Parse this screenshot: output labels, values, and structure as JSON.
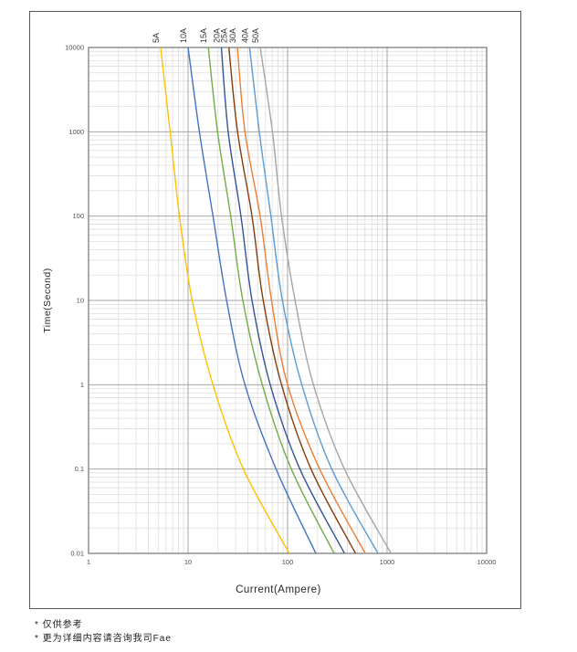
{
  "figure": {
    "footnotes": [
      "* 仅供参考",
      "* 更为详细内容请咨询我司Fae"
    ]
  },
  "chart_data": {
    "type": "line",
    "title": "",
    "xlabel": "Current(Ampere)",
    "ylabel": "Time(Second)",
    "x_scale": "log",
    "y_scale": "log",
    "xlim": [
      1,
      10000
    ],
    "ylim": [
      0.01,
      10000
    ],
    "x_ticks": [
      "1",
      "10",
      "100",
      "1000",
      "10000"
    ],
    "y_ticks": [
      "10000",
      "1000",
      "100",
      "10",
      "1",
      "0.1",
      "0.01"
    ],
    "grid": "log major and minor, both axes",
    "legend_position": "labels rotated above curve tops",
    "colors": {
      "minor_grid": "#d9d9d9",
      "major_grid": "#a6a6a6",
      "plot_border": "#737373",
      "tick_text": "#4d4d4d",
      "label_text": "#333333"
    },
    "series": [
      {
        "name": "5A",
        "color": "#FFC000",
        "points": [
          [
            5.3,
            10000
          ],
          [
            6.6,
            1000
          ],
          [
            8.2,
            100
          ],
          [
            11,
            10
          ],
          [
            17.8,
            1
          ],
          [
            36,
            0.1
          ],
          [
            104,
            0.01
          ]
        ]
      },
      {
        "name": "10A",
        "color": "#4472C4",
        "points": [
          [
            10,
            10000
          ],
          [
            13,
            1000
          ],
          [
            17.8,
            100
          ],
          [
            24.4,
            10
          ],
          [
            37.3,
            1
          ],
          [
            76.6,
            0.1
          ],
          [
            192,
            0.01
          ]
        ]
      },
      {
        "name": "15A",
        "color": "#70AD47",
        "points": [
          [
            16,
            10000
          ],
          [
            19.8,
            1000
          ],
          [
            26.8,
            100
          ],
          [
            35.5,
            10
          ],
          [
            55.7,
            1
          ],
          [
            109,
            0.1
          ],
          [
            294,
            0.01
          ]
        ]
      },
      {
        "name": "20A",
        "color": "#2F5597",
        "points": [
          [
            21.6,
            10000
          ],
          [
            25.3,
            1000
          ],
          [
            34,
            100
          ],
          [
            43.9,
            10
          ],
          [
            67,
            1
          ],
          [
            133,
            0.1
          ],
          [
            373,
            0.01
          ]
        ]
      },
      {
        "name": "25A",
        "color": "#843C0C",
        "points": [
          [
            25.7,
            10000
          ],
          [
            31.4,
            1000
          ],
          [
            43.9,
            100
          ],
          [
            56.9,
            10
          ],
          [
            86.9,
            1
          ],
          [
            172,
            0.1
          ],
          [
            481,
            0.01
          ]
        ]
      },
      {
        "name": "30A",
        "color": "#ED7D31",
        "points": [
          [
            31.3,
            10000
          ],
          [
            37.3,
            1000
          ],
          [
            53,
            100
          ],
          [
            68.9,
            10
          ],
          [
            100,
            1
          ],
          [
            210,
            0.1
          ],
          [
            602,
            0.01
          ]
        ]
      },
      {
        "name": "40A",
        "color": "#5B9BD5",
        "points": [
          [
            41.5,
            10000
          ],
          [
            52,
            1000
          ],
          [
            67.9,
            100
          ],
          [
            88.7,
            10
          ],
          [
            139,
            1
          ],
          [
            278,
            0.1
          ],
          [
            809,
            0.01
          ]
        ]
      },
      {
        "name": "50A",
        "color": "#A5A5A5",
        "points": [
          [
            53.2,
            10000
          ],
          [
            70.4,
            1000
          ],
          [
            86.9,
            100
          ],
          [
            119,
            10
          ],
          [
            182,
            1
          ],
          [
            373,
            0.1
          ],
          [
            1096,
            0.01
          ]
        ]
      }
    ]
  }
}
